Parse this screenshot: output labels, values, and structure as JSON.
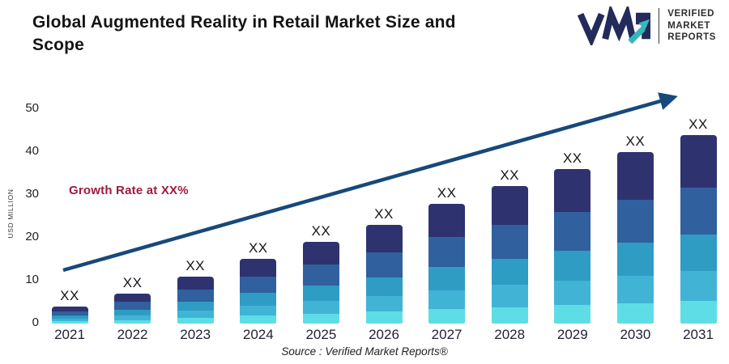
{
  "header": {
    "title": "Global Augmented Reality in Retail Market Size and Scope",
    "logo": {
      "brand": "VMR",
      "name_lines": [
        "VERIFIED",
        "MARKET",
        "REPORTS"
      ],
      "brand_color": "#232a5c",
      "arrow_color": "#38b7ba"
    }
  },
  "annotations": {
    "growth_rate_label": "Growth Rate at XX%",
    "source_label": "Source :  Verified Market Reports®"
  },
  "chart_data": {
    "type": "bar",
    "stacked": true,
    "title": "Global Augmented Reality in Retail Market Size and Scope",
    "ylabel": "USD MILLION",
    "xlabel": "",
    "categories": [
      "2021",
      "2022",
      "2023",
      "2024",
      "2025",
      "2026",
      "2027",
      "2028",
      "2029",
      "2030",
      "2031"
    ],
    "values": [
      4,
      7,
      11,
      15,
      19,
      23,
      28,
      32,
      36,
      40,
      44
    ],
    "bar_value_label": "XX",
    "yticks": [
      0,
      10,
      20,
      30,
      40,
      50
    ],
    "ylim": [
      0,
      52
    ],
    "grid": false,
    "legend": false,
    "segment_colors_top_to_bottom": [
      "#2e336f",
      "#30609d",
      "#2f9cc3",
      "#41b4d6",
      "#5edde6"
    ],
    "segment_fractions_top_to_bottom": [
      0.28,
      0.25,
      0.19,
      0.16,
      0.12
    ],
    "trend_arrow": {
      "present": true,
      "color": "#17497b"
    },
    "growth_annotation_color": "#9d1b3e"
  }
}
